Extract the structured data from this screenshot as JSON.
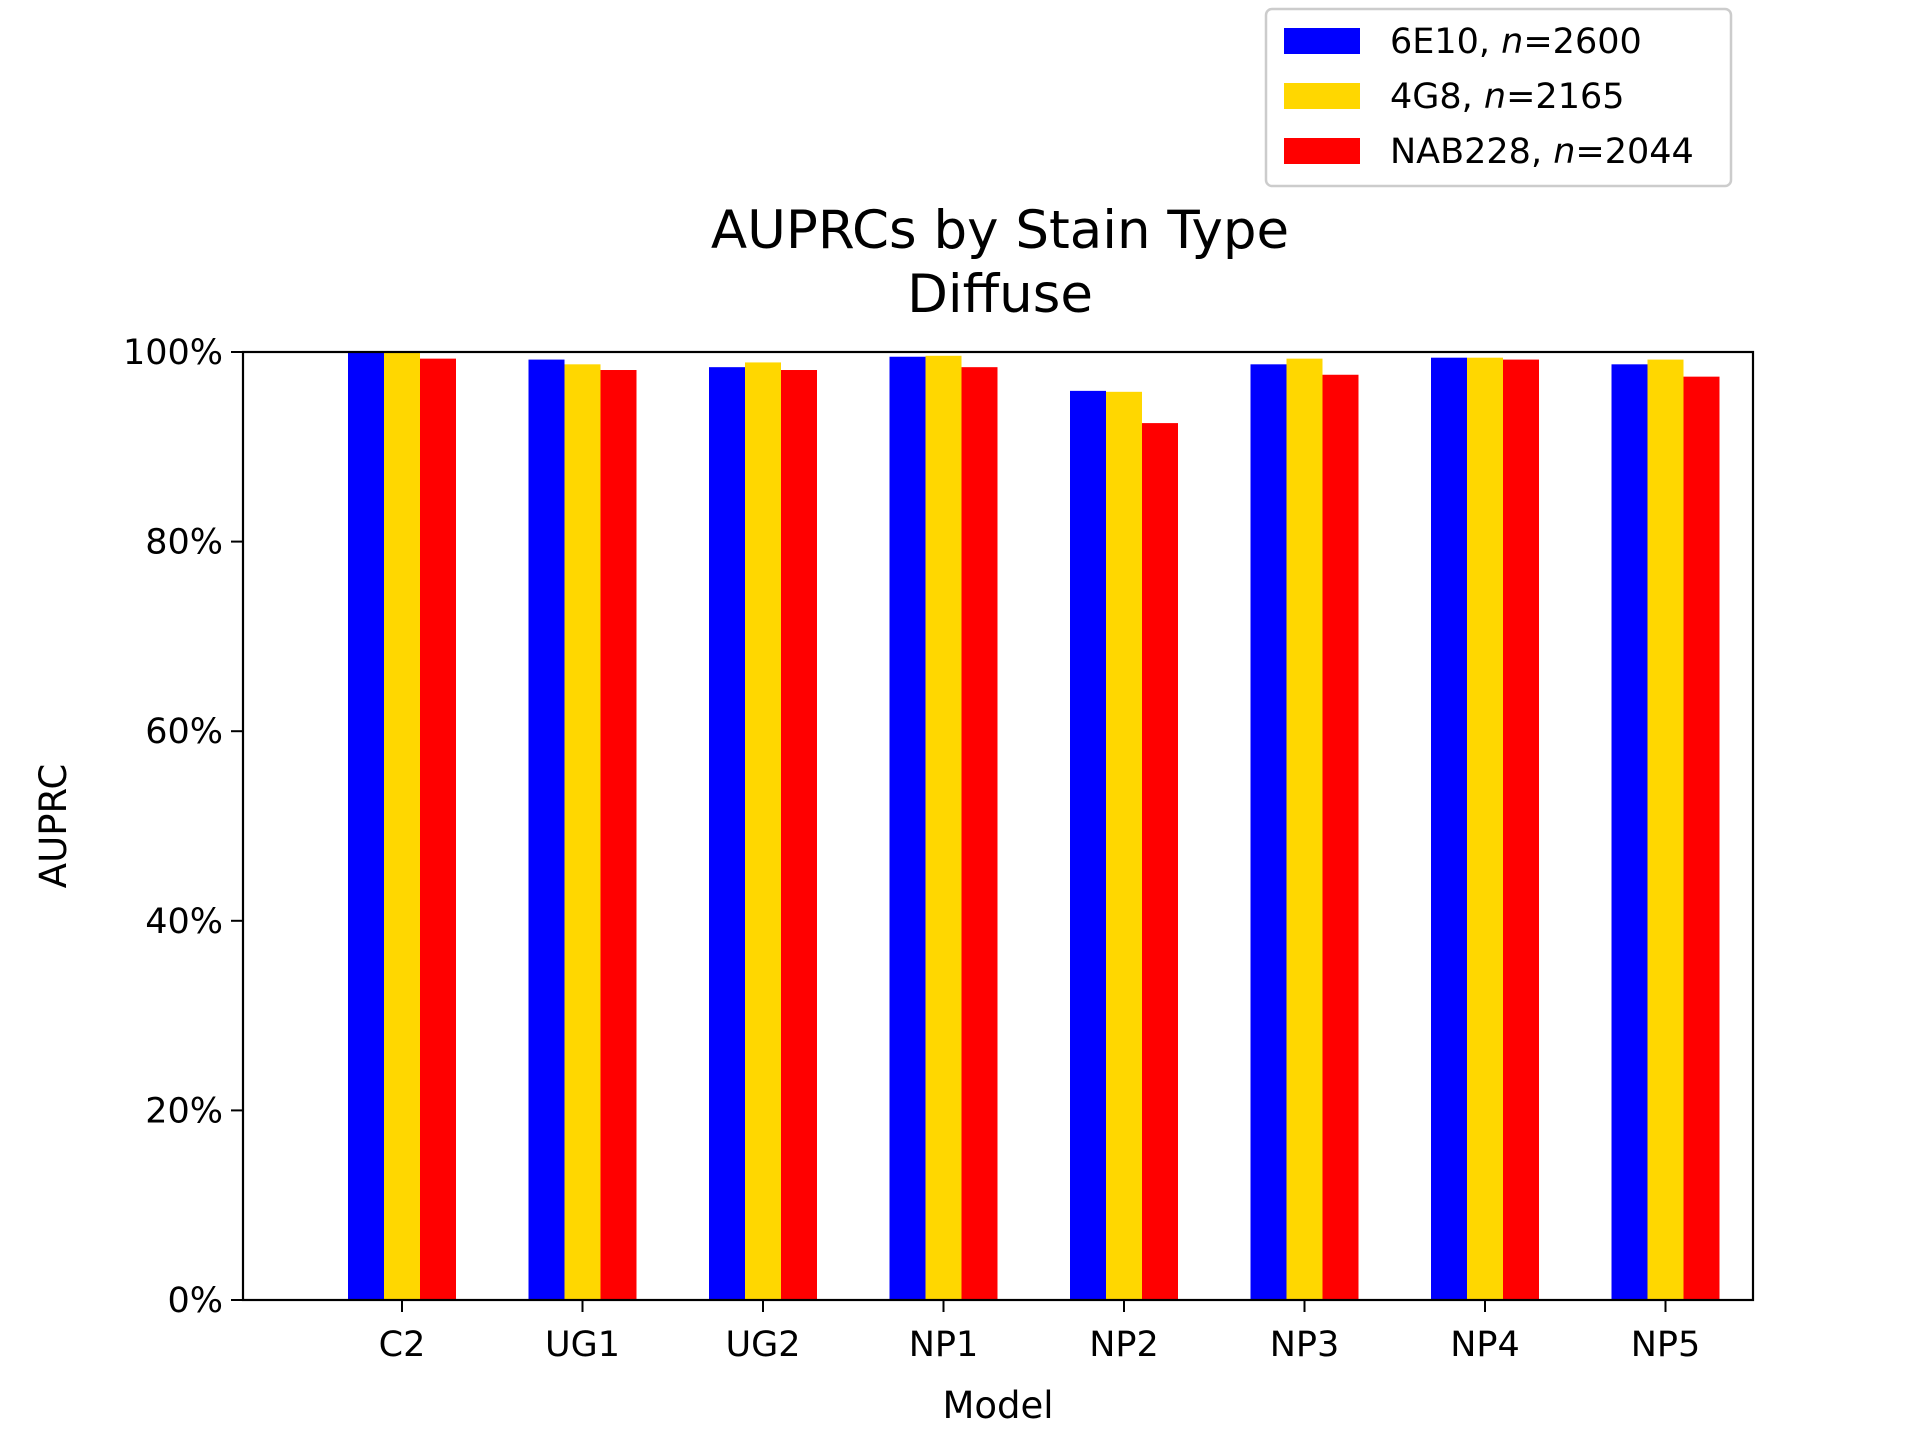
{
  "chart_data": {
    "type": "bar",
    "title": "AUPRCs by Stain Type",
    "subtitle": "Diffuse",
    "xlabel": "Model",
    "ylabel": "AUPRC",
    "categories": [
      "C2",
      "UG1",
      "UG2",
      "NP1",
      "NP2",
      "NP3",
      "NP4",
      "NP5"
    ],
    "ylim": [
      0,
      100
    ],
    "yticks": [
      0,
      20,
      40,
      60,
      80,
      100
    ],
    "ytick_labels": [
      "0%",
      "20%",
      "40%",
      "60%",
      "80%",
      "100%"
    ],
    "grid": false,
    "legend_position": "top-right",
    "series": [
      {
        "name": "6E10",
        "n": "2600",
        "color": "#0000ff",
        "values": [
          100.0,
          99.2,
          98.4,
          99.5,
          95.9,
          98.7,
          99.4,
          98.7
        ]
      },
      {
        "name": "4G8",
        "n": "2165",
        "color": "#ffd700",
        "values": [
          100.0,
          98.7,
          98.9,
          99.6,
          95.8,
          99.3,
          99.4,
          99.2
        ]
      },
      {
        "name": "NAB228",
        "n": "2044",
        "color": "#ff0000",
        "values": [
          99.3,
          98.1,
          98.1,
          98.4,
          92.5,
          97.6,
          99.2,
          97.4
        ]
      }
    ]
  }
}
